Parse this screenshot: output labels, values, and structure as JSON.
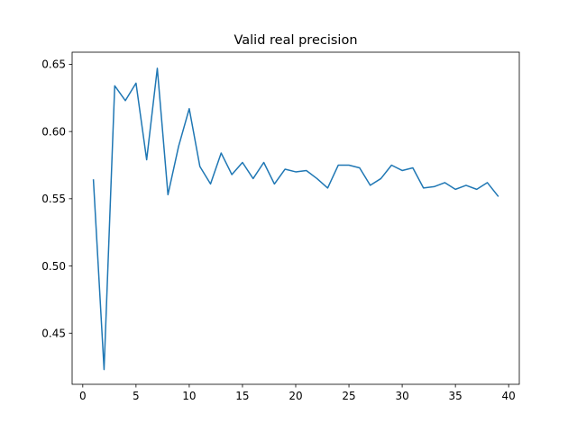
{
  "chart_data": {
    "type": "line",
    "title": "Valid real precision",
    "xlabel": "",
    "ylabel": "",
    "xlim": [
      -1,
      41
    ],
    "ylim": [
      0.412,
      0.659
    ],
    "xticks": [
      0,
      5,
      10,
      15,
      20,
      25,
      30,
      35,
      40
    ],
    "xtick_labels": [
      "0",
      "5",
      "10",
      "15",
      "20",
      "25",
      "30",
      "35",
      "40"
    ],
    "yticks": [
      0.45,
      0.5,
      0.55,
      0.6,
      0.65
    ],
    "ytick_labels": [
      "0.45",
      "0.50",
      "0.55",
      "0.60",
      "0.65"
    ],
    "grid": false,
    "series": [
      {
        "color": "#1f77b4",
        "x": [
          1,
          2,
          3,
          4,
          5,
          6,
          7,
          8,
          9,
          10,
          11,
          12,
          13,
          14,
          15,
          16,
          17,
          18,
          19,
          20,
          21,
          22,
          23,
          24,
          25,
          26,
          27,
          28,
          29,
          30,
          31,
          32,
          33,
          34,
          35,
          36,
          37,
          38,
          39
        ],
        "y": [
          0.564,
          0.423,
          0.634,
          0.623,
          0.636,
          0.579,
          0.647,
          0.553,
          0.589,
          0.617,
          0.574,
          0.561,
          0.584,
          0.568,
          0.577,
          0.565,
          0.577,
          0.561,
          0.572,
          0.57,
          0.571,
          0.565,
          0.558,
          0.575,
          0.575,
          0.573,
          0.56,
          0.565,
          0.575,
          0.571,
          0.573,
          0.558,
          0.559,
          0.562,
          0.557,
          0.56,
          0.557,
          0.562,
          0.552
        ]
      }
    ]
  }
}
